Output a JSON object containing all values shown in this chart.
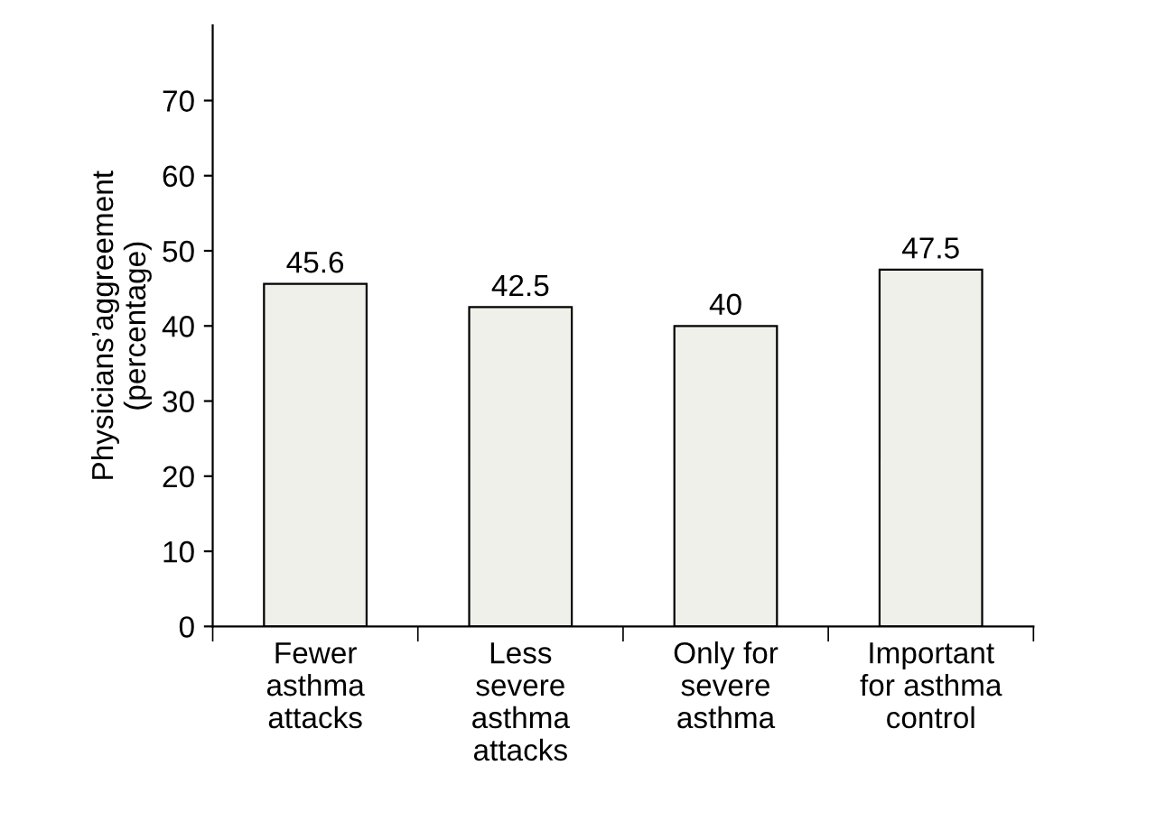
{
  "chart_data": {
    "type": "bar",
    "ylabel": "Physicians’aggreement\n(percentage)",
    "categories": [
      "Fewer\nasthma\nattacks",
      "Less\nsevere\nasthma\nattacks",
      "Only for\nsevere\nasthma",
      "Important\nfor asthma\ncontrol"
    ],
    "values": [
      45.6,
      42.5,
      40,
      47.5
    ],
    "value_labels": [
      "45.6",
      "42.5",
      "40",
      "47.5"
    ],
    "color": "#f0f0ea",
    "ylim": [
      0,
      80
    ],
    "yticks": [
      0,
      10,
      20,
      30,
      40,
      50,
      60,
      70
    ],
    "grid": false
  }
}
